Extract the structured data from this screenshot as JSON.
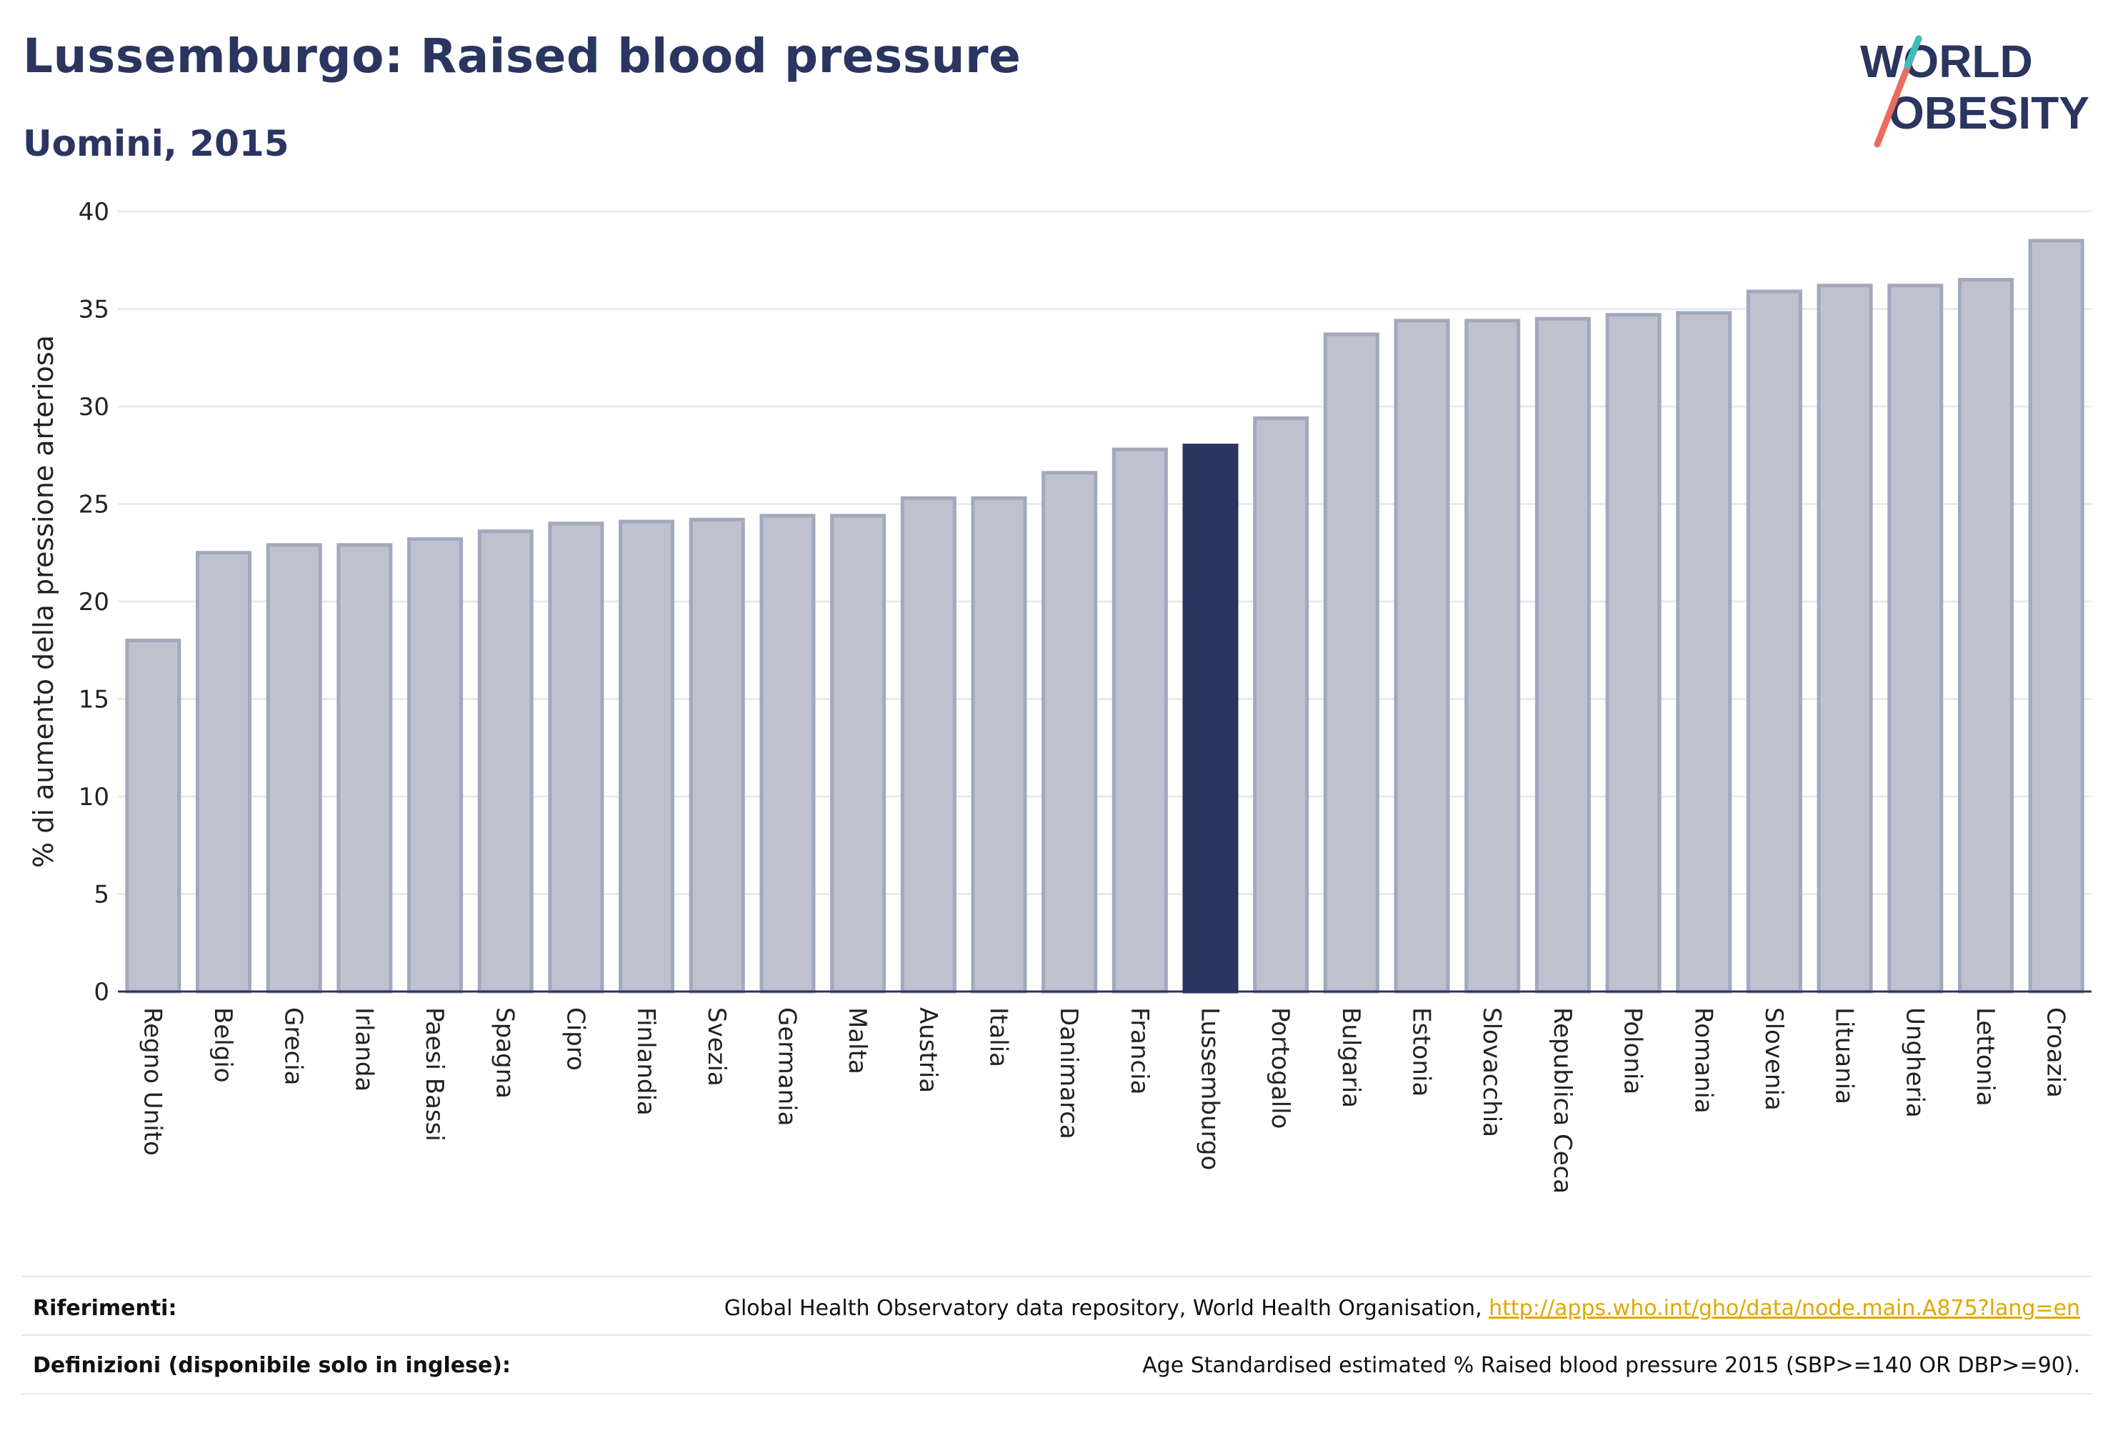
{
  "header": {
    "title": "Lussemburgo: Raised blood pressure",
    "subtitle": "Uomini, 2015"
  },
  "logo": {
    "line1": "WORLD",
    "line2": "OBESITY"
  },
  "colors": {
    "bar": "#bfc2ce",
    "bar_stroke": "#a2a8bd",
    "highlight": "#2a3560",
    "axis_text": "#222222",
    "grid": "#e9eaf0"
  },
  "chart_data": {
    "type": "bar",
    "title": "Lussemburgo: Raised blood pressure",
    "subtitle": "Uomini, 2015",
    "xlabel": "",
    "ylabel": "% di aumento della pressione arteriosa",
    "ylim": [
      0,
      40
    ],
    "yticks": [
      0,
      5,
      10,
      15,
      20,
      25,
      30,
      35,
      40
    ],
    "grid": true,
    "highlight": "Lussemburgo",
    "categories": [
      "Regno Unito",
      "Belgio",
      "Grecia",
      "Irlanda",
      "Paesi Bassi",
      "Spagna",
      "Cipro",
      "Finlandia",
      "Svezia",
      "Germania",
      "Malta",
      "Austria",
      "Italia",
      "Danimarca",
      "Francia",
      "Lussemburgo",
      "Portogallo",
      "Bulgaria",
      "Estonia",
      "Slovacchia",
      "Republica Ceca",
      "Polonia",
      "Romania",
      "Slovenia",
      "Lituania",
      "Ungheria",
      "Lettonia",
      "Croazia"
    ],
    "values": [
      18.0,
      22.5,
      22.9,
      22.9,
      23.2,
      23.6,
      24.0,
      24.1,
      24.2,
      24.4,
      24.4,
      25.3,
      25.3,
      26.6,
      27.8,
      28.0,
      29.4,
      33.7,
      34.4,
      34.4,
      34.5,
      34.7,
      34.8,
      35.9,
      36.2,
      36.2,
      36.5,
      38.5
    ]
  },
  "footer": {
    "references_label": "Riferimenti:",
    "references_text": "Global Health Observatory data repository, World Health Organisation, ",
    "references_link": "http://apps.who.int/gho/data/node.main.A875?lang=en",
    "definitions_label": "Definizioni (disponibile solo in inglese):",
    "definitions_text": "Age Standardised estimated % Raised blood pressure 2015 (SBP>=140 OR DBP>=90)."
  }
}
